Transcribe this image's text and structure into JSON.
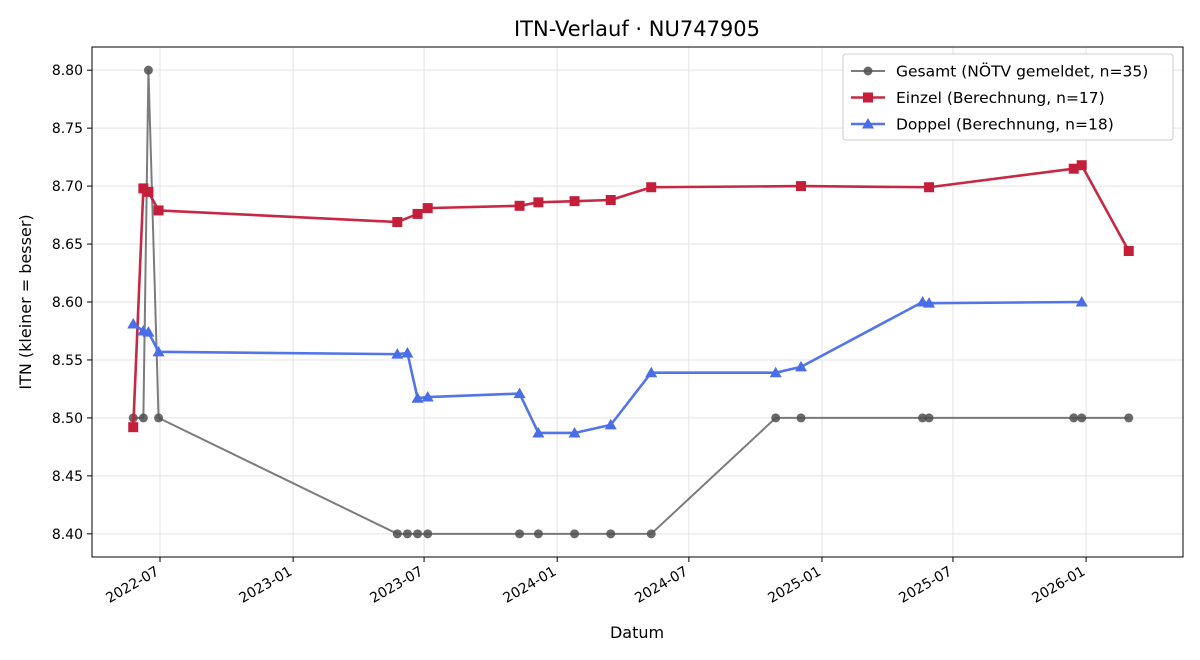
{
  "chart_data": {
    "type": "line",
    "title": "ITN-Verlauf · NU747905",
    "xlabel": "Datum",
    "ylabel": "ITN  (kleiner = besser)",
    "x_axis_type": "date",
    "xlim": [
      "2022-03-29",
      "2026-05-15"
    ],
    "ylim": [
      8.38,
      8.82
    ],
    "yticks": [
      8.4,
      8.45,
      8.5,
      8.55,
      8.6,
      8.65,
      8.7,
      8.75,
      8.8
    ],
    "xticks": [
      {
        "date": "2022-07-01",
        "label": "2022-07"
      },
      {
        "date": "2023-01-01",
        "label": "2023-01"
      },
      {
        "date": "2023-07-01",
        "label": "2023-07"
      },
      {
        "date": "2024-01-01",
        "label": "2024-01"
      },
      {
        "date": "2024-07-01",
        "label": "2024-07"
      },
      {
        "date": "2025-01-01",
        "label": "2025-01"
      },
      {
        "date": "2025-07-01",
        "label": "2025-07"
      },
      {
        "date": "2026-01-01",
        "label": "2026-01"
      }
    ],
    "grid": true,
    "legend_position": "top-right",
    "series": [
      {
        "name": "Gesamt (NÖTV gemeldet, n=35)",
        "color": "#505050",
        "marker": "circle",
        "points": [
          [
            "2022-05-25",
            8.5
          ],
          [
            "2022-06-08",
            8.5
          ],
          [
            "2022-06-15",
            8.8
          ],
          [
            "2022-06-29",
            8.5
          ],
          [
            "2023-05-25",
            8.4
          ],
          [
            "2023-06-08",
            8.4
          ],
          [
            "2023-06-22",
            8.4
          ],
          [
            "2023-07-06",
            8.4
          ],
          [
            "2023-11-10",
            8.4
          ],
          [
            "2023-12-06",
            8.4
          ],
          [
            "2024-01-25",
            8.4
          ],
          [
            "2024-03-15",
            8.4
          ],
          [
            "2024-05-10",
            8.4
          ],
          [
            "2024-10-29",
            8.5
          ],
          [
            "2024-12-03",
            8.5
          ],
          [
            "2025-05-20",
            8.5
          ],
          [
            "2025-05-29",
            8.5
          ],
          [
            "2025-12-15",
            8.5
          ],
          [
            "2025-12-26",
            8.5
          ],
          [
            "2026-03-01",
            8.5
          ]
        ]
      },
      {
        "name": "Einzel (Berechnung, n=17)",
        "color": "#c41e3a",
        "marker": "square",
        "points": [
          [
            "2022-05-25",
            8.492
          ],
          [
            "2022-06-08",
            8.698
          ],
          [
            "2022-06-15",
            8.695
          ],
          [
            "2022-06-29",
            8.679
          ],
          [
            "2023-05-25",
            8.669
          ],
          [
            "2023-06-22",
            8.676
          ],
          [
            "2023-07-06",
            8.681
          ],
          [
            "2023-11-10",
            8.683
          ],
          [
            "2023-12-06",
            8.686
          ],
          [
            "2024-01-25",
            8.687
          ],
          [
            "2024-03-15",
            8.688
          ],
          [
            "2024-05-10",
            8.699
          ],
          [
            "2024-12-03",
            8.7
          ],
          [
            "2025-05-29",
            8.699
          ],
          [
            "2025-12-15",
            8.715
          ],
          [
            "2025-12-26",
            8.718
          ],
          [
            "2026-03-01",
            8.644
          ]
        ]
      },
      {
        "name": "Doppel (Berechnung, n=18)",
        "color": "#4a6ee8",
        "marker": "triangle",
        "points": [
          [
            "2022-05-25",
            8.581
          ],
          [
            "2022-06-08",
            8.575
          ],
          [
            "2022-06-15",
            8.574
          ],
          [
            "2022-06-29",
            8.557
          ],
          [
            "2023-05-25",
            8.555
          ],
          [
            "2023-06-08",
            8.556
          ],
          [
            "2023-06-22",
            8.517
          ],
          [
            "2023-07-06",
            8.518
          ],
          [
            "2023-11-10",
            8.521
          ],
          [
            "2023-12-06",
            8.487
          ],
          [
            "2024-01-25",
            8.487
          ],
          [
            "2024-03-15",
            8.494
          ],
          [
            "2024-05-10",
            8.539
          ],
          [
            "2024-10-29",
            8.539
          ],
          [
            "2024-12-03",
            8.544
          ],
          [
            "2025-05-20",
            8.6
          ],
          [
            "2025-05-29",
            8.599
          ],
          [
            "2025-12-26",
            8.6
          ]
        ]
      }
    ]
  }
}
